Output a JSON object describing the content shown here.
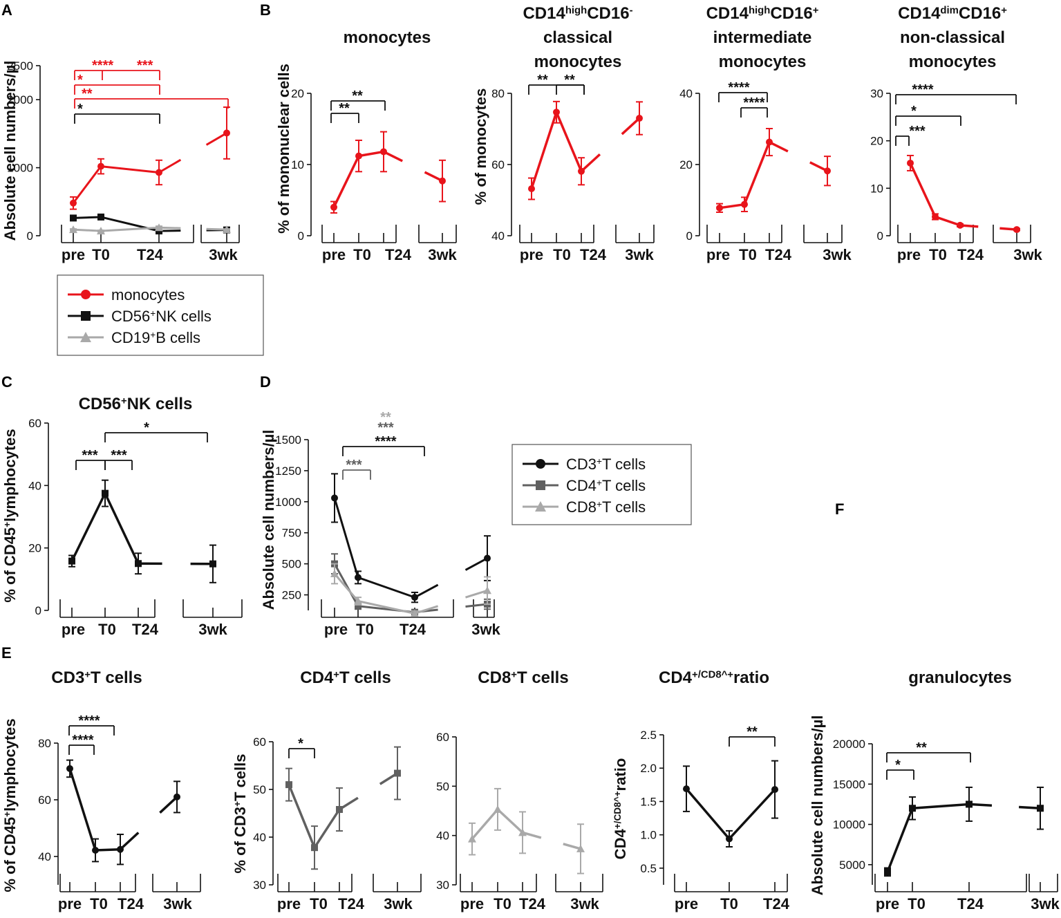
{
  "colors": {
    "red": "#e8141b",
    "black": "#111111",
    "darkgray": "#606060",
    "lightgray": "#a9a9a9"
  },
  "panel_letters": {
    "A": "A",
    "B": "B",
    "C": "C",
    "D": "D",
    "E": "E",
    "F": "F"
  },
  "legend_A": [
    {
      "label": "monocytes",
      "sup": "",
      "rest": "",
      "color": "red",
      "marker": "circle"
    },
    {
      "label": "CD56",
      "sup": "+",
      "rest": " NK cells",
      "color": "black",
      "marker": "square"
    },
    {
      "label": "CD19",
      "sup": "+",
      "rest": " B cells",
      "color": "lightgray",
      "marker": "triangle"
    }
  ],
  "legend_D": [
    {
      "label": "CD3",
      "sup": "+",
      "rest": " T cells",
      "color": "black",
      "marker": "circle"
    },
    {
      "label": "CD4",
      "sup": "+",
      "rest": " T cells",
      "color": "darkgray",
      "marker": "square"
    },
    {
      "label": "CD8",
      "sup": "+",
      "rest": " T cells",
      "color": "lightgray",
      "marker": "triangle"
    }
  ],
  "chart_data": [
    {
      "id": "A",
      "type": "line",
      "title": [],
      "ylabel": "Absolute cell numbers/µl",
      "categories": [
        "pre",
        "T0",
        "T24",
        "3wk"
      ],
      "ylim": [
        0,
        2500
      ],
      "yticks": [
        "0",
        "1000",
        "2000",
        "2500"
      ],
      "series": [
        {
          "name": "monocytes",
          "color": "red",
          "marker": "circle",
          "values": [
            480,
            1020,
            930,
            1510
          ],
          "err": [
            90,
            110,
            180,
            380
          ]
        },
        {
          "name": "CD56+ NK cells",
          "color": "black",
          "marker": "square",
          "values": [
            260,
            275,
            70,
            85
          ],
          "err": [
            20,
            30,
            15,
            10
          ]
        },
        {
          "name": "CD19+ B cells",
          "color": "lightgray",
          "marker": "triangle",
          "values": [
            90,
            70,
            120,
            90
          ],
          "err": [
            10,
            10,
            20,
            10
          ]
        }
      ],
      "significance": [
        {
          "label": "****",
          "color": "red"
        },
        {
          "label": "***",
          "color": "red"
        },
        {
          "label": "*",
          "color": "red"
        },
        {
          "label": "**",
          "color": "red"
        },
        {
          "label": "*",
          "color": "black"
        }
      ]
    },
    {
      "id": "B1",
      "type": "line",
      "title": [
        "monocytes"
      ],
      "ylabel": "% of mononuclear cells",
      "categories": [
        "pre",
        "T0",
        "T24",
        "3wk"
      ],
      "ylim": [
        0,
        20
      ],
      "yticks": [
        "0",
        "10",
        "20"
      ],
      "series": [
        {
          "name": "monocytes",
          "color": "red",
          "marker": "circle",
          "values": [
            4.0,
            11.2,
            11.8,
            7.7
          ],
          "err": [
            0.8,
            2.2,
            2.8,
            2.9
          ]
        }
      ],
      "significance": [
        {
          "label": "**",
          "color": "black"
        },
        {
          "label": "**",
          "color": "black"
        }
      ]
    },
    {
      "id": "B2",
      "type": "line",
      "title": [
        "CD14^high CD16^-",
        "classical",
        "monocytes"
      ],
      "ylabel": "% of monocytes",
      "categories": [
        "pre",
        "T0",
        "T24",
        "3wk"
      ],
      "ylim": [
        40,
        80
      ],
      "yticks": [
        "40",
        "60",
        "80"
      ],
      "series": [
        {
          "name": "classical monocytes",
          "color": "red",
          "marker": "circle",
          "values": [
            53.2,
            74.7,
            58.1,
            73.0
          ],
          "err": [
            3.0,
            3.0,
            3.8,
            4.6
          ]
        }
      ],
      "significance": [
        {
          "label": "**",
          "color": "black"
        },
        {
          "label": "**",
          "color": "black"
        }
      ]
    },
    {
      "id": "B3",
      "type": "line",
      "title": [
        "CD14^high CD16^+",
        "intermediate",
        "monocytes"
      ],
      "ylabel": "",
      "categories": [
        "pre",
        "T0",
        "T24",
        "3wk"
      ],
      "ylim": [
        0,
        40
      ],
      "yticks": [
        "0",
        "20",
        "40"
      ],
      "series": [
        {
          "name": "intermediate monocytes",
          "color": "red",
          "marker": "circle",
          "values": [
            7.8,
            8.8,
            26.3,
            18.2
          ],
          "err": [
            1.2,
            2.0,
            3.8,
            4.1
          ]
        }
      ],
      "significance": [
        {
          "label": "****",
          "color": "black"
        },
        {
          "label": "****",
          "color": "black"
        }
      ]
    },
    {
      "id": "B4",
      "type": "line",
      "title": [
        "CD14^dim CD16^+",
        "non-classical",
        "monocytes"
      ],
      "ylabel": "",
      "categories": [
        "pre",
        "T0",
        "T24",
        "3wk"
      ],
      "ylim": [
        0,
        30
      ],
      "yticks": [
        "0",
        "10",
        "20",
        "30"
      ],
      "series": [
        {
          "name": "non-classical monocytes",
          "color": "red",
          "marker": "circle",
          "values": [
            15.3,
            4.0,
            2.2,
            1.3
          ],
          "err": [
            1.6,
            0.6,
            0.3,
            0.2
          ]
        }
      ],
      "significance": [
        {
          "label": "****",
          "color": "black"
        },
        {
          "label": "*",
          "color": "black"
        },
        {
          "label": "***",
          "color": "black"
        }
      ]
    },
    {
      "id": "C",
      "type": "line",
      "title": [
        "CD56^+ NK cells"
      ],
      "ylabel": "% of CD45^+ lymphocytes",
      "categories": [
        "pre",
        "T0",
        "T24",
        "3wk"
      ],
      "ylim": [
        0,
        60
      ],
      "yticks": [
        "0",
        "20",
        "40",
        "60"
      ],
      "series": [
        {
          "name": "CD56+ NK cells",
          "color": "black",
          "marker": "square",
          "values": [
            15.8,
            37.5,
            15.0,
            14.9
          ],
          "err": [
            1.8,
            4.2,
            3.3,
            6.0
          ]
        }
      ],
      "significance": [
        {
          "label": "*",
          "color": "black"
        },
        {
          "label": "***",
          "color": "black"
        },
        {
          "label": "***",
          "color": "black"
        }
      ]
    },
    {
      "id": "D",
      "type": "line",
      "title": [],
      "ylabel": "Absolute cell numbers/µl",
      "categories": [
        "pre",
        "T0",
        "T24",
        "3wk"
      ],
      "ylim": [
        125,
        1500
      ],
      "yticks": [
        "250",
        "500",
        "750",
        "1000",
        "1250",
        "1500"
      ],
      "series": [
        {
          "name": "CD3+ T cells",
          "color": "black",
          "marker": "circle",
          "values": [
            1030,
            390,
            230,
            545
          ],
          "err": [
            195,
            50,
            40,
            180
          ]
        },
        {
          "name": "CD4+ T cells",
          "color": "darkgray",
          "marker": "square",
          "values": [
            500,
            160,
            110,
            175
          ],
          "err": [
            80,
            25,
            15,
            40
          ]
        },
        {
          "name": "CD8+ T cells",
          "color": "lightgray",
          "marker": "triangle",
          "values": [
            420,
            200,
            100,
            285
          ],
          "err": [
            80,
            30,
            20,
            110
          ]
        }
      ],
      "significance": [
        {
          "label": "**",
          "color": "lightgray"
        },
        {
          "label": "***",
          "color": "darkgray"
        },
        {
          "label": "****",
          "color": "black"
        },
        {
          "label": "***",
          "color": "darkgray"
        }
      ]
    },
    {
      "id": "E1",
      "type": "line",
      "title": [
        "CD3^+ T cells"
      ],
      "ylabel": "% of CD45^+ lymphocytes",
      "categories": [
        "pre",
        "T0",
        "T24",
        "3wk"
      ],
      "ylim": [
        30,
        80
      ],
      "yticks": [
        "40",
        "60",
        "80"
      ],
      "series": [
        {
          "name": "CD3+ T cells",
          "color": "black",
          "marker": "circle",
          "values": [
            71.0,
            42.2,
            42.5,
            61.0
          ],
          "err": [
            3.0,
            4.0,
            5.3,
            5.5
          ]
        }
      ],
      "significance": [
        {
          "label": "****",
          "color": "black"
        },
        {
          "label": "****",
          "color": "black"
        }
      ]
    },
    {
      "id": "E2",
      "type": "line",
      "title": [
        "CD4^+ T cells"
      ],
      "ylabel": "% of CD3^+ T cells",
      "categories": [
        "pre",
        "T0",
        "T24",
        "3wk"
      ],
      "ylim": [
        30,
        60
      ],
      "yticks": [
        "30",
        "40",
        "50",
        "60"
      ],
      "series": [
        {
          "name": "CD4+ T cells",
          "color": "darkgray",
          "marker": "square",
          "values": [
            51.0,
            37.8,
            45.8,
            53.4
          ],
          "err": [
            3.4,
            4.5,
            4.5,
            5.5
          ]
        }
      ],
      "significance": [
        {
          "label": "*",
          "color": "black"
        }
      ]
    },
    {
      "id": "E3",
      "type": "line",
      "title": [
        "CD8^+ T cells"
      ],
      "ylabel": "",
      "categories": [
        "pre",
        "T0",
        "T24",
        "3wk"
      ],
      "ylim": [
        30,
        60
      ],
      "yticks": [
        "30",
        "40",
        "50",
        "60"
      ],
      "series": [
        {
          "name": "CD8+ T cells",
          "color": "lightgray",
          "marker": "triangle",
          "values": [
            39.3,
            45.3,
            40.6,
            37.3
          ],
          "err": [
            3.2,
            4.2,
            4.2,
            5.0
          ]
        }
      ],
      "significance": []
    },
    {
      "id": "E4",
      "type": "line",
      "title": [
        "CD4^+/CD8^+ ratio"
      ],
      "ylabel": "CD4^+/CD8^+ ratio",
      "categories": [
        "pre",
        "T0",
        "T24"
      ],
      "ylim": [
        0.25,
        2.5
      ],
      "yticks": [
        "0.5",
        "1.0",
        "1.5",
        "2.0",
        "2.5"
      ],
      "series": [
        {
          "name": "CD4+/CD8+ ratio",
          "color": "black",
          "marker": "circle",
          "values": [
            1.69,
            0.94,
            1.68
          ],
          "err": [
            0.34,
            0.12,
            0.43
          ]
        }
      ],
      "significance": [
        {
          "label": "**",
          "color": "black"
        }
      ]
    },
    {
      "id": "E5",
      "type": "line",
      "title": [
        "granulocytes"
      ],
      "ylabel": "Absolute cell numbers/µl",
      "categories": [
        "pre",
        "T0",
        "T24",
        "3wk"
      ],
      "ylim": [
        2500,
        20000
      ],
      "yticks": [
        "5000",
        "10000",
        "15000",
        "20000"
      ],
      "series": [
        {
          "name": "granulocytes",
          "color": "black",
          "marker": "square",
          "values": [
            4100,
            12000,
            12500,
            12000
          ],
          "err": [
            500,
            1400,
            2100,
            2600
          ]
        }
      ],
      "significance": [
        {
          "label": "**",
          "color": "black"
        },
        {
          "label": "*",
          "color": "black"
        }
      ]
    }
  ]
}
